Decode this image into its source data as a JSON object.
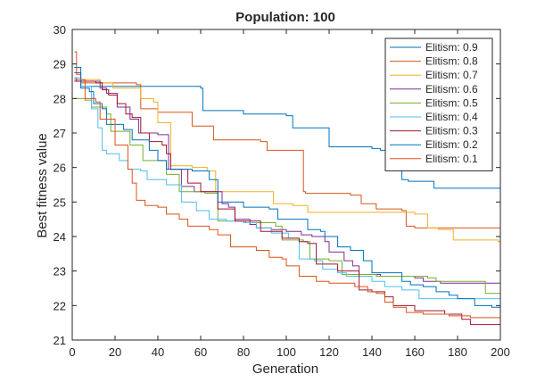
{
  "chart_data": {
    "type": "line",
    "title": "Population: 100",
    "xlabel": "Generation",
    "ylabel": "Best fitness value",
    "xlim": [
      0,
      200
    ],
    "ylim": [
      21,
      30
    ],
    "xticks": [
      "0",
      "20",
      "40",
      "60",
      "80",
      "100",
      "120",
      "140",
      "160",
      "180",
      "200"
    ],
    "yticks": [
      "21",
      "22",
      "23",
      "24",
      "25",
      "26",
      "27",
      "28",
      "29",
      "30"
    ],
    "grid": false,
    "legend_location": "top-right",
    "series": [
      {
        "name": "Elitism: 0.9",
        "color": "#0072BD",
        "points": [
          [
            1,
            28.6
          ],
          [
            2,
            28.5
          ],
          [
            4,
            28.35
          ],
          [
            60,
            28.3
          ],
          [
            61,
            27.65
          ],
          [
            80,
            27.55
          ],
          [
            100,
            27.5
          ],
          [
            103,
            27.15
          ],
          [
            120,
            26.6
          ],
          [
            140,
            26.55
          ],
          [
            144,
            26.5
          ],
          [
            150,
            26.1
          ],
          [
            154,
            25.65
          ],
          [
            157,
            25.6
          ],
          [
            164,
            25.6
          ],
          [
            169,
            25.4
          ],
          [
            198,
            25.4
          ],
          [
            200,
            25.3
          ]
        ]
      },
      {
        "name": "Elitism: 0.8",
        "color": "#D95319",
        "points": [
          [
            1,
            29.35
          ],
          [
            2,
            28.7
          ],
          [
            4,
            28.45
          ],
          [
            30,
            28.4
          ],
          [
            32,
            27.7
          ],
          [
            40,
            27.6
          ],
          [
            55,
            27.6
          ],
          [
            56,
            27.2
          ],
          [
            66,
            26.8
          ],
          [
            88,
            26.75
          ],
          [
            91,
            26.5
          ],
          [
            104,
            26.5
          ],
          [
            108,
            25.3
          ],
          [
            109,
            25.25
          ],
          [
            130,
            25.2
          ],
          [
            135,
            24.95
          ],
          [
            142,
            24.8
          ],
          [
            154,
            24.75
          ],
          [
            156,
            24.3
          ],
          [
            160,
            24.25
          ],
          [
            200,
            24.25
          ]
        ]
      },
      {
        "name": "Elitism: 0.7",
        "color": "#EDB120",
        "points": [
          [
            1,
            28.5
          ],
          [
            4,
            28.55
          ],
          [
            13,
            28.45
          ],
          [
            19,
            28.3
          ],
          [
            31,
            28.3
          ],
          [
            32,
            28.0
          ],
          [
            38,
            27.9
          ],
          [
            40,
            27.3
          ],
          [
            44,
            27.3
          ],
          [
            46,
            26.05
          ],
          [
            56,
            26.0
          ],
          [
            63,
            25.9
          ],
          [
            67,
            25.3
          ],
          [
            90,
            25.3
          ],
          [
            94,
            24.95
          ],
          [
            103,
            24.9
          ],
          [
            110,
            24.7
          ],
          [
            140,
            24.7
          ],
          [
            160,
            24.65
          ],
          [
            166,
            24.25
          ],
          [
            171,
            24.2
          ],
          [
            178,
            23.9
          ],
          [
            199,
            23.85
          ],
          [
            200,
            23.75
          ]
        ]
      },
      {
        "name": "Elitism: 0.6",
        "color": "#7E2F8E",
        "points": [
          [
            1,
            28.75
          ],
          [
            4,
            28.5
          ],
          [
            13,
            28.3
          ],
          [
            16,
            28.15
          ],
          [
            21,
            27.75
          ],
          [
            27,
            27.4
          ],
          [
            31,
            27.0
          ],
          [
            40,
            26.95
          ],
          [
            45,
            25.95
          ],
          [
            51,
            25.45
          ],
          [
            57,
            25.3
          ],
          [
            63,
            25.3
          ],
          [
            70,
            24.95
          ],
          [
            73,
            24.85
          ],
          [
            76,
            24.5
          ],
          [
            83,
            24.35
          ],
          [
            86,
            24.25
          ],
          [
            93,
            24.2
          ],
          [
            100,
            24.15
          ],
          [
            107,
            24.05
          ],
          [
            112,
            24.0
          ],
          [
            118,
            23.85
          ],
          [
            120,
            23.55
          ],
          [
            127,
            23.3
          ],
          [
            131,
            23.15
          ],
          [
            134,
            22.9
          ],
          [
            144,
            22.85
          ],
          [
            160,
            22.8
          ],
          [
            164,
            22.7
          ],
          [
            172,
            22.65
          ],
          [
            200,
            22.6
          ]
        ]
      },
      {
        "name": "Elitism: 0.5",
        "color": "#77AC30",
        "points": [
          [
            1,
            28.0
          ],
          [
            6,
            27.95
          ],
          [
            9,
            27.75
          ],
          [
            16,
            27.55
          ],
          [
            18,
            27.05
          ],
          [
            27,
            26.65
          ],
          [
            33,
            26.2
          ],
          [
            44,
            25.8
          ],
          [
            50,
            25.3
          ],
          [
            62,
            25.25
          ],
          [
            68,
            24.45
          ],
          [
            81,
            24.4
          ],
          [
            95,
            24.3
          ],
          [
            98,
            23.9
          ],
          [
            108,
            23.85
          ],
          [
            111,
            23.35
          ],
          [
            120,
            23.3
          ],
          [
            126,
            22.9
          ],
          [
            142,
            22.85
          ],
          [
            166,
            22.8
          ],
          [
            170,
            22.7
          ],
          [
            190,
            22.7
          ],
          [
            193,
            22.35
          ],
          [
            200,
            22.35
          ]
        ]
      },
      {
        "name": "Elitism: 0.4",
        "color": "#4DBEEE",
        "points": [
          [
            1,
            28.6
          ],
          [
            4,
            28.35
          ],
          [
            9,
            27.7
          ],
          [
            12,
            27.15
          ],
          [
            14,
            26.5
          ],
          [
            16,
            26.4
          ],
          [
            22,
            26.2
          ],
          [
            26,
            25.95
          ],
          [
            32,
            25.9
          ],
          [
            35,
            25.65
          ],
          [
            44,
            25.5
          ],
          [
            51,
            25.0
          ],
          [
            58,
            24.75
          ],
          [
            64,
            24.5
          ],
          [
            72,
            24.45
          ],
          [
            80,
            24.4
          ],
          [
            86,
            24.25
          ],
          [
            93,
            24.1
          ],
          [
            101,
            23.95
          ],
          [
            106,
            23.35
          ],
          [
            113,
            23.3
          ],
          [
            117,
            23.05
          ],
          [
            124,
            22.95
          ],
          [
            128,
            22.85
          ],
          [
            140,
            22.7
          ],
          [
            146,
            22.55
          ],
          [
            154,
            22.45
          ],
          [
            162,
            22.2
          ],
          [
            200,
            22.2
          ]
        ]
      },
      {
        "name": "Elitism: 0.3",
        "color": "#A2142F",
        "points": [
          [
            1,
            28.5
          ],
          [
            11,
            28.45
          ],
          [
            14,
            28.25
          ],
          [
            17,
            28.1
          ],
          [
            21,
            27.85
          ],
          [
            25,
            27.55
          ],
          [
            28,
            27.45
          ],
          [
            32,
            27.0
          ],
          [
            36,
            26.75
          ],
          [
            42,
            26.65
          ],
          [
            44,
            26.4
          ],
          [
            46,
            25.95
          ],
          [
            54,
            25.55
          ],
          [
            60,
            25.3
          ],
          [
            68,
            24.8
          ],
          [
            76,
            24.45
          ],
          [
            88,
            24.15
          ],
          [
            98,
            23.95
          ],
          [
            106,
            23.85
          ],
          [
            110,
            23.8
          ],
          [
            114,
            23.2
          ],
          [
            124,
            23.0
          ],
          [
            134,
            22.45
          ],
          [
            140,
            22.4
          ],
          [
            146,
            22.25
          ],
          [
            150,
            22.0
          ],
          [
            160,
            21.85
          ],
          [
            174,
            21.75
          ],
          [
            182,
            21.6
          ],
          [
            186,
            21.45
          ],
          [
            200,
            21.45
          ]
        ]
      },
      {
        "name": "Elitism: 0.2",
        "color": "#0072BD",
        "points": [
          [
            1,
            28.9
          ],
          [
            4,
            28.3
          ],
          [
            8,
            28.2
          ],
          [
            10,
            27.85
          ],
          [
            14,
            27.7
          ],
          [
            16,
            27.25
          ],
          [
            24,
            27.1
          ],
          [
            28,
            26.8
          ],
          [
            36,
            26.5
          ],
          [
            40,
            26.2
          ],
          [
            44,
            25.95
          ],
          [
            56,
            25.9
          ],
          [
            64,
            25.65
          ],
          [
            68,
            25.0
          ],
          [
            80,
            24.85
          ],
          [
            92,
            24.8
          ],
          [
            96,
            24.5
          ],
          [
            106,
            24.5
          ],
          [
            110,
            24.2
          ],
          [
            116,
            24.15
          ],
          [
            118,
            24.0
          ],
          [
            124,
            23.7
          ],
          [
            130,
            23.6
          ],
          [
            136,
            23.3
          ],
          [
            140,
            22.95
          ],
          [
            154,
            22.7
          ],
          [
            158,
            22.6
          ],
          [
            164,
            22.55
          ],
          [
            170,
            22.4
          ],
          [
            176,
            22.3
          ],
          [
            180,
            22.2
          ],
          [
            188,
            22.0
          ],
          [
            196,
            21.95
          ],
          [
            200,
            21.85
          ]
        ]
      },
      {
        "name": "Elitism: 0.1",
        "color": "#D95319",
        "points": [
          [
            1,
            28.55
          ],
          [
            6,
            28.0
          ],
          [
            11,
            27.9
          ],
          [
            13,
            27.4
          ],
          [
            20,
            26.65
          ],
          [
            26,
            25.95
          ],
          [
            28,
            25.55
          ],
          [
            30,
            25.05
          ],
          [
            34,
            24.9
          ],
          [
            40,
            24.85
          ],
          [
            44,
            24.65
          ],
          [
            50,
            24.5
          ],
          [
            54,
            24.3
          ],
          [
            64,
            24.2
          ],
          [
            68,
            24.05
          ],
          [
            74,
            23.7
          ],
          [
            86,
            23.6
          ],
          [
            92,
            23.4
          ],
          [
            98,
            23.35
          ],
          [
            100,
            23.15
          ],
          [
            106,
            22.85
          ],
          [
            114,
            22.7
          ],
          [
            120,
            22.65
          ],
          [
            132,
            22.55
          ],
          [
            138,
            22.4
          ],
          [
            142,
            22.35
          ],
          [
            146,
            22.1
          ],
          [
            150,
            21.95
          ],
          [
            156,
            21.8
          ],
          [
            164,
            21.75
          ],
          [
            176,
            21.7
          ],
          [
            186,
            21.65
          ],
          [
            200,
            21.65
          ]
        ]
      }
    ]
  }
}
